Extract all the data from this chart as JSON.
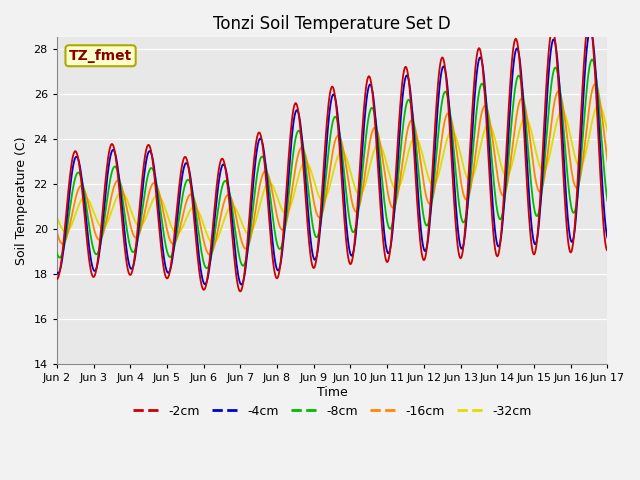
{
  "title": "Tonzi Soil Temperature Set D",
  "xlabel": "Time",
  "ylabel": "Soil Temperature (C)",
  "ylim": [
    14,
    28.5
  ],
  "xlim": [
    0,
    15
  ],
  "x_tick_labels": [
    "Jun 2",
    "Jun 3",
    "Jun 4",
    "Jun 5",
    "Jun 6",
    "Jun 7",
    "Jun 8",
    "Jun 9",
    "Jun 10",
    "Jun 11",
    "Jun 12",
    "Jun 13",
    "Jun 14",
    "Jun 15",
    "Jun 16",
    "Jun 17"
  ],
  "x_tick_positions": [
    0,
    1,
    2,
    3,
    4,
    5,
    6,
    7,
    8,
    9,
    10,
    11,
    12,
    13,
    14,
    15
  ],
  "yticks": [
    14,
    16,
    18,
    20,
    22,
    24,
    26,
    28
  ],
  "legend_labels": [
    "-2cm",
    "-4cm",
    "-8cm",
    "-16cm",
    "-32cm"
  ],
  "legend_colors": [
    "#cc0000",
    "#0000cc",
    "#00bb00",
    "#ff8800",
    "#dddd00"
  ],
  "annotation_text": "TZ_fmet",
  "annotation_color": "#880000",
  "annotation_bg": "#ffffcc",
  "annotation_edge": "#aaaa00",
  "plot_bg_color": "#e8e8e8",
  "grid_color": "#ffffff",
  "fig_bg_color": "#f2f2f2",
  "title_fontsize": 12,
  "axis_label_fontsize": 9,
  "tick_fontsize": 8,
  "legend_fontsize": 9,
  "line_width": 1.3
}
